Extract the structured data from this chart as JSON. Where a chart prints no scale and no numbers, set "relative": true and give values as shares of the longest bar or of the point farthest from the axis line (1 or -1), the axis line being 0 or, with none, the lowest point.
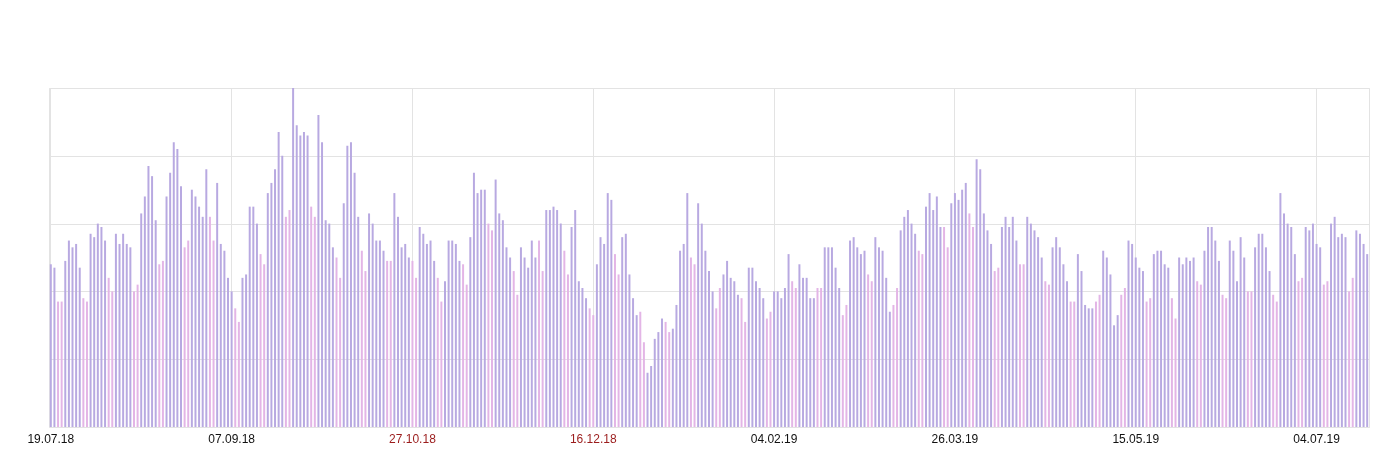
{
  "chart_data": {
    "type": "bar",
    "relative": true,
    "grid": true,
    "categories": [
      "19.07.18",
      null,
      null,
      null,
      null,
      null,
      null,
      null,
      null,
      null,
      null,
      null,
      null,
      null,
      null,
      null,
      null,
      null,
      null,
      null,
      null,
      null,
      null,
      null,
      null,
      null,
      null,
      null,
      null,
      null,
      null,
      null,
      null,
      null,
      null,
      null,
      null,
      null,
      null,
      null,
      null,
      null,
      null,
      null,
      null,
      null,
      null,
      null,
      null,
      null,
      "07.09.18",
      null,
      null,
      null,
      null,
      null,
      null,
      null,
      null,
      null,
      null,
      null,
      null,
      null,
      null,
      null,
      null,
      null,
      null,
      null,
      null,
      null,
      null,
      null,
      null,
      null,
      null,
      null,
      null,
      null,
      null,
      null,
      null,
      null,
      null,
      null,
      null,
      null,
      null,
      null,
      null,
      null,
      null,
      null,
      null,
      null,
      null,
      null,
      null,
      null,
      "27.10.18",
      null,
      null,
      null,
      null,
      null,
      null,
      null,
      null,
      null,
      null,
      null,
      null,
      null,
      null,
      null,
      null,
      null,
      null,
      null,
      null,
      null,
      null,
      null,
      null,
      null,
      null,
      null,
      null,
      null,
      null,
      null,
      null,
      null,
      null,
      null,
      null,
      null,
      null,
      null,
      null,
      null,
      null,
      null,
      null,
      null,
      null,
      null,
      null,
      null,
      "16.12.18",
      null,
      null,
      null,
      null,
      null,
      null,
      null,
      null,
      null,
      null,
      null,
      null,
      null,
      null,
      null,
      null,
      null,
      null,
      null,
      null,
      null,
      null,
      null,
      null,
      null,
      null,
      null,
      null,
      null,
      null,
      null,
      null,
      null,
      null,
      null,
      null,
      null,
      null,
      null,
      null,
      null,
      null,
      null,
      null,
      null,
      null,
      null,
      null,
      null,
      "04.02.19",
      null,
      null,
      null,
      null,
      null,
      null,
      null,
      null,
      null,
      null,
      null,
      null,
      null,
      null,
      null,
      null,
      null,
      null,
      null,
      null,
      null,
      null,
      null,
      null,
      null,
      null,
      null,
      null,
      null,
      null,
      null,
      null,
      null,
      null,
      null,
      null,
      null,
      null,
      null,
      null,
      null,
      null,
      null,
      null,
      null,
      null,
      null,
      null,
      null,
      "26.03.19",
      null,
      null,
      null,
      null,
      null,
      null,
      null,
      null,
      null,
      null,
      null,
      null,
      null,
      null,
      null,
      null,
      null,
      null,
      null,
      null,
      null,
      null,
      null,
      null,
      null,
      null,
      null,
      null,
      null,
      null,
      null,
      null,
      null,
      null,
      null,
      null,
      null,
      null,
      null,
      null,
      null,
      null,
      null,
      null,
      null,
      null,
      null,
      null,
      null,
      "15.05.19",
      null,
      null,
      null,
      null,
      null,
      null,
      null,
      null,
      null,
      null,
      null,
      null,
      null,
      null,
      null,
      null,
      null,
      null,
      null,
      null,
      null,
      null,
      null,
      null,
      null,
      null,
      null,
      null,
      null,
      null,
      null,
      null,
      null,
      null,
      null,
      null,
      null,
      null,
      null,
      null,
      null,
      null,
      null,
      null,
      null,
      null,
      null,
      null,
      null,
      "04.07.19",
      null,
      null,
      null,
      null,
      null,
      null,
      null,
      null,
      null,
      null,
      null,
      null,
      null,
      null
    ],
    "values": [
      0.48,
      0.47,
      0.37,
      0.37,
      0.49,
      0.55,
      0.53,
      0.54,
      0.47,
      0.38,
      0.37,
      0.57,
      0.56,
      0.6,
      0.59,
      0.55,
      0.44,
      0.4,
      0.57,
      0.54,
      0.57,
      0.54,
      0.53,
      0.4,
      0.42,
      0.63,
      0.68,
      0.77,
      0.74,
      0.61,
      0.48,
      0.49,
      0.68,
      0.75,
      0.84,
      0.82,
      0.71,
      0.53,
      0.55,
      0.7,
      0.68,
      0.65,
      0.62,
      0.76,
      0.62,
      0.55,
      0.72,
      0.54,
      0.52,
      0.44,
      0.4,
      0.35,
      0.31,
      0.44,
      0.45,
      0.65,
      0.65,
      0.6,
      0.51,
      0.48,
      0.69,
      0.72,
      0.76,
      0.87,
      0.8,
      0.62,
      0.64,
      1,
      0.89,
      0.86,
      0.87,
      0.86,
      0.65,
      0.62,
      0.92,
      0.84,
      0.61,
      0.6,
      0.53,
      0.5,
      0.44,
      0.66,
      0.83,
      0.84,
      0.75,
      0.62,
      0.52,
      0.46,
      0.63,
      0.6,
      0.55,
      0.55,
      0.52,
      0.49,
      0.49,
      0.69,
      0.62,
      0.53,
      0.54,
      0.5,
      0.49,
      0.44,
      0.59,
      0.57,
      0.54,
      0.55,
      0.49,
      0.44,
      0.37,
      0.43,
      0.55,
      0.55,
      0.54,
      0.49,
      0.48,
      0.42,
      0.56,
      0.75,
      0.69,
      0.7,
      0.7,
      0.6,
      0.58,
      0.73,
      0.63,
      0.61,
      0.53,
      0.5,
      0.46,
      0.39,
      0.53,
      0.5,
      0.47,
      0.55,
      0.5,
      0.55,
      0.46,
      0.64,
      0.64,
      0.65,
      0.64,
      0.6,
      0.52,
      0.45,
      0.59,
      0.64,
      0.43,
      0.41,
      0.38,
      0.35,
      0.33,
      0.48,
      0.56,
      0.54,
      0.69,
      0.67,
      0.51,
      0.45,
      0.56,
      0.57,
      0.45,
      0.38,
      0.33,
      0.34,
      0.25,
      0.16,
      0.18,
      0.26,
      0.28,
      0.32,
      0.31,
      0.28,
      0.29,
      0.36,
      0.52,
      0.54,
      0.69,
      0.5,
      0.48,
      0.66,
      0.6,
      0.52,
      0.46,
      0.4,
      0.35,
      0.41,
      0.45,
      0.49,
      0.44,
      0.43,
      0.39,
      0.38,
      0.31,
      0.47,
      0.47,
      0.43,
      0.41,
      0.38,
      0.32,
      0.34,
      0.4,
      0.4,
      0.38,
      0.41,
      0.51,
      0.43,
      0.41,
      0.48,
      0.44,
      0.44,
      0.38,
      0.38,
      0.41,
      0.41,
      0.53,
      0.53,
      0.53,
      0.47,
      0.41,
      0.33,
      0.36,
      0.55,
      0.56,
      0.53,
      0.51,
      0.52,
      0.45,
      0.43,
      0.56,
      0.53,
      0.52,
      0.44,
      0.34,
      0.36,
      0.41,
      0.58,
      0.62,
      0.64,
      0.6,
      0.57,
      0.52,
      0.51,
      0.65,
      0.69,
      0.64,
      0.68,
      0.59,
      0.59,
      0.53,
      0.66,
      0.69,
      0.67,
      0.7,
      0.72,
      0.63,
      0.59,
      0.79,
      0.76,
      0.63,
      0.58,
      0.54,
      0.46,
      0.47,
      0.59,
      0.62,
      0.59,
      0.62,
      0.55,
      0.48,
      0.48,
      0.62,
      0.6,
      0.58,
      0.56,
      0.5,
      0.43,
      0.42,
      0.53,
      0.56,
      0.53,
      0.48,
      0.43,
      0.37,
      0.37,
      0.51,
      0.46,
      0.36,
      0.35,
      0.35,
      0.37,
      0.39,
      0.52,
      0.5,
      0.45,
      0.3,
      0.33,
      0.39,
      0.41,
      0.55,
      0.54,
      0.5,
      0.47,
      0.46,
      0.37,
      0.38,
      0.51,
      0.52,
      0.52,
      0.48,
      0.47,
      0.38,
      0.32,
      0.5,
      0.48,
      0.5,
      0.49,
      0.5,
      0.43,
      0.42,
      0.52,
      0.59,
      0.59,
      0.55,
      0.49,
      0.39,
      0.38,
      0.55,
      0.52,
      0.43,
      0.56,
      0.5,
      0.4,
      0.4,
      0.53,
      0.57,
      0.57,
      0.53,
      0.46,
      0.39,
      0.37,
      0.69,
      0.63,
      0.6,
      0.59,
      0.51,
      0.43,
      0.44,
      0.59,
      0.58,
      0.6,
      0.54,
      0.53,
      0.42,
      0.43,
      0.6,
      0.62,
      0.56,
      0.57,
      0.56,
      0.4,
      0.44,
      0.58,
      0.57,
      0.54,
      0.51
    ],
    "colors": [
      "#b8a9e1",
      "#b8a9e1",
      "#e3b5e6",
      "#e3b5e6",
      "#b8a9e1",
      "#b8a9e1",
      "#b8a9e1",
      "#b8a9e1",
      "#b8a9e1",
      "#e3b5e6",
      "#e3b5e6",
      "#b8a9e1",
      "#b8a9e1",
      "#b8a9e1",
      "#b8a9e1",
      "#b8a9e1",
      "#e3b5e6",
      "#e3b5e6",
      "#b8a9e1",
      "#b8a9e1",
      "#b8a9e1",
      "#b8a9e1",
      "#b8a9e1",
      "#e3b5e6",
      "#e3b5e6",
      "#b8a9e1",
      "#b8a9e1",
      "#b8a9e1",
      "#b8a9e1",
      "#b8a9e1",
      "#e3b5e6",
      "#e3b5e6",
      "#b8a9e1",
      "#b8a9e1",
      "#b8a9e1",
      "#b8a9e1",
      "#b8a9e1",
      "#e3b5e6",
      "#e3b5e6",
      "#b8a9e1",
      "#b8a9e1",
      "#b8a9e1",
      "#b8a9e1",
      "#b8a9e1",
      "#e3b5e6",
      "#e3b5e6",
      "#b8a9e1",
      "#b8a9e1",
      "#b8a9e1",
      "#b8a9e1",
      "#b8a9e1",
      "#e3b5e6",
      "#e3b5e6",
      "#b8a9e1",
      "#b8a9e1",
      "#b8a9e1",
      "#b8a9e1",
      "#b8a9e1",
      "#e3b5e6",
      "#e3b5e6",
      "#b8a9e1",
      "#b8a9e1",
      "#b8a9e1",
      "#b8a9e1",
      "#b8a9e1",
      "#e3b5e6",
      "#e3b5e6",
      "#b8a9e1",
      "#b8a9e1",
      "#b8a9e1",
      "#b8a9e1",
      "#b8a9e1",
      "#e3b5e6",
      "#e3b5e6",
      "#b8a9e1",
      "#b8a9e1",
      "#b8a9e1",
      "#b8a9e1",
      "#b8a9e1",
      "#e3b5e6",
      "#e3b5e6",
      "#b8a9e1",
      "#b8a9e1",
      "#b8a9e1",
      "#b8a9e1",
      "#b8a9e1",
      "#e3b5e6",
      "#e3b5e6",
      "#b8a9e1",
      "#b8a9e1",
      "#b8a9e1",
      "#b8a9e1",
      "#b8a9e1",
      "#e3b5e6",
      "#e3b5e6",
      "#b8a9e1",
      "#b8a9e1",
      "#b8a9e1",
      "#b8a9e1",
      "#b8a9e1",
      "#e3b5e6",
      "#e3b5e6",
      "#b8a9e1",
      "#b8a9e1",
      "#b8a9e1",
      "#b8a9e1",
      "#b8a9e1",
      "#e3b5e6",
      "#e3b5e6",
      "#b8a9e1",
      "#b8a9e1",
      "#b8a9e1",
      "#b8a9e1",
      "#b8a9e1",
      "#e3b5e6",
      "#e3b5e6",
      "#b8a9e1",
      "#b8a9e1",
      "#b8a9e1",
      "#b8a9e1",
      "#b8a9e1",
      "#e3b5e6",
      "#e3b5e6",
      "#b8a9e1",
      "#b8a9e1",
      "#b8a9e1",
      "#b8a9e1",
      "#b8a9e1",
      "#e3b5e6",
      "#e3b5e6",
      "#b8a9e1",
      "#b8a9e1",
      "#b8a9e1",
      "#b8a9e1",
      "#b8a9e1",
      "#e3b5e6",
      "#e3b5e6",
      "#b8a9e1",
      "#b8a9e1",
      "#b8a9e1",
      "#b8a9e1",
      "#b8a9e1",
      "#e3b5e6",
      "#e3b5e6",
      "#b8a9e1",
      "#b8a9e1",
      "#b8a9e1",
      "#b8a9e1",
      "#b8a9e1",
      "#e3b5e6",
      "#e3b5e6",
      "#b8a9e1",
      "#b8a9e1",
      "#b8a9e1",
      "#b8a9e1",
      "#b8a9e1",
      "#e3b5e6",
      "#e3b5e6",
      "#b8a9e1",
      "#b8a9e1",
      "#b8a9e1",
      "#b8a9e1",
      "#b8a9e1",
      "#e3b5e6",
      "#e3b5e6",
      "#b8a9e1",
      "#b8a9e1",
      "#b8a9e1",
      "#b8a9e1",
      "#b8a9e1",
      "#e3b5e6",
      "#e3b5e6",
      "#b8a9e1",
      "#b8a9e1",
      "#b8a9e1",
      "#b8a9e1",
      "#b8a9e1",
      "#e3b5e6",
      "#e3b5e6",
      "#b8a9e1",
      "#b8a9e1",
      "#b8a9e1",
      "#b8a9e1",
      "#b8a9e1",
      "#e3b5e6",
      "#e3b5e6",
      "#b8a9e1",
      "#b8a9e1",
      "#b8a9e1",
      "#b8a9e1",
      "#b8a9e1",
      "#e3b5e6",
      "#e3b5e6",
      "#b8a9e1",
      "#b8a9e1",
      "#b8a9e1",
      "#b8a9e1",
      "#b8a9e1",
      "#e3b5e6",
      "#e3b5e6",
      "#b8a9e1",
      "#b8a9e1",
      "#b8a9e1",
      "#b8a9e1",
      "#b8a9e1",
      "#e3b5e6",
      "#e3b5e6",
      "#b8a9e1",
      "#b8a9e1",
      "#b8a9e1",
      "#b8a9e1",
      "#b8a9e1",
      "#e3b5e6",
      "#e3b5e6",
      "#b8a9e1",
      "#b8a9e1",
      "#b8a9e1",
      "#b8a9e1",
      "#b8a9e1",
      "#e3b5e6",
      "#e3b5e6",
      "#b8a9e1",
      "#b8a9e1",
      "#b8a9e1",
      "#b8a9e1",
      "#b8a9e1",
      "#e3b5e6",
      "#e3b5e6",
      "#b8a9e1",
      "#b8a9e1",
      "#b8a9e1",
      "#b8a9e1",
      "#b8a9e1",
      "#e3b5e6",
      "#e3b5e6",
      "#b8a9e1",
      "#b8a9e1",
      "#b8a9e1",
      "#b8a9e1",
      "#b8a9e1",
      "#e3b5e6",
      "#e3b5e6",
      "#b8a9e1",
      "#b8a9e1",
      "#b8a9e1",
      "#b8a9e1",
      "#b8a9e1",
      "#e3b5e6",
      "#e3b5e6",
      "#b8a9e1",
      "#b8a9e1",
      "#b8a9e1",
      "#b8a9e1",
      "#b8a9e1",
      "#e3b5e6",
      "#e3b5e6",
      "#b8a9e1",
      "#b8a9e1",
      "#b8a9e1",
      "#b8a9e1",
      "#b8a9e1",
      "#e3b5e6",
      "#e3b5e6",
      "#b8a9e1",
      "#b8a9e1",
      "#b8a9e1",
      "#b8a9e1",
      "#b8a9e1",
      "#e3b5e6",
      "#e3b5e6",
      "#b8a9e1",
      "#b8a9e1",
      "#b8a9e1",
      "#b8a9e1",
      "#b8a9e1",
      "#e3b5e6",
      "#e3b5e6",
      "#b8a9e1",
      "#b8a9e1",
      "#b8a9e1",
      "#b8a9e1",
      "#b8a9e1",
      "#e3b5e6",
      "#e3b5e6",
      "#b8a9e1",
      "#b8a9e1",
      "#b8a9e1",
      "#b8a9e1",
      "#b8a9e1",
      "#e3b5e6",
      "#e3b5e6",
      "#b8a9e1",
      "#b8a9e1",
      "#b8a9e1",
      "#b8a9e1",
      "#b8a9e1",
      "#e3b5e6",
      "#e3b5e6",
      "#b8a9e1",
      "#b8a9e1",
      "#b8a9e1",
      "#b8a9e1",
      "#b8a9e1",
      "#e3b5e6",
      "#e3b5e6",
      "#b8a9e1",
      "#b8a9e1",
      "#b8a9e1",
      "#b8a9e1",
      "#b8a9e1",
      "#e3b5e6",
      "#e3b5e6",
      "#b8a9e1",
      "#b8a9e1",
      "#b8a9e1",
      "#b8a9e1",
      "#b8a9e1",
      "#e3b5e6",
      "#e3b5e6",
      "#b8a9e1",
      "#b8a9e1",
      "#b8a9e1",
      "#b8a9e1",
      "#b8a9e1",
      "#e3b5e6",
      "#e3b5e6",
      "#b8a9e1",
      "#b8a9e1",
      "#b8a9e1",
      "#b8a9e1",
      "#b8a9e1",
      "#e3b5e6",
      "#e3b5e6",
      "#b8a9e1",
      "#b8a9e1",
      "#b8a9e1",
      "#b8a9e1",
      "#b8a9e1",
      "#e3b5e6",
      "#e3b5e6",
      "#b8a9e1",
      "#b8a9e1",
      "#b8a9e1",
      "#b8a9e1",
      "#b8a9e1",
      "#e3b5e6",
      "#e3b5e6",
      "#b8a9e1",
      "#b8a9e1",
      "#b8a9e1",
      "#b8a9e1",
      "#b8a9e1",
      "#e3b5e6",
      "#e3b5e6",
      "#b8a9e1",
      "#b8a9e1",
      "#b8a9e1",
      "#b8a9e1",
      "#b8a9e1",
      "#e3b5e6",
      "#e3b5e6",
      "#b8a9e1",
      "#b8a9e1",
      "#b8a9e1",
      "#b8a9e1"
    ]
  }
}
